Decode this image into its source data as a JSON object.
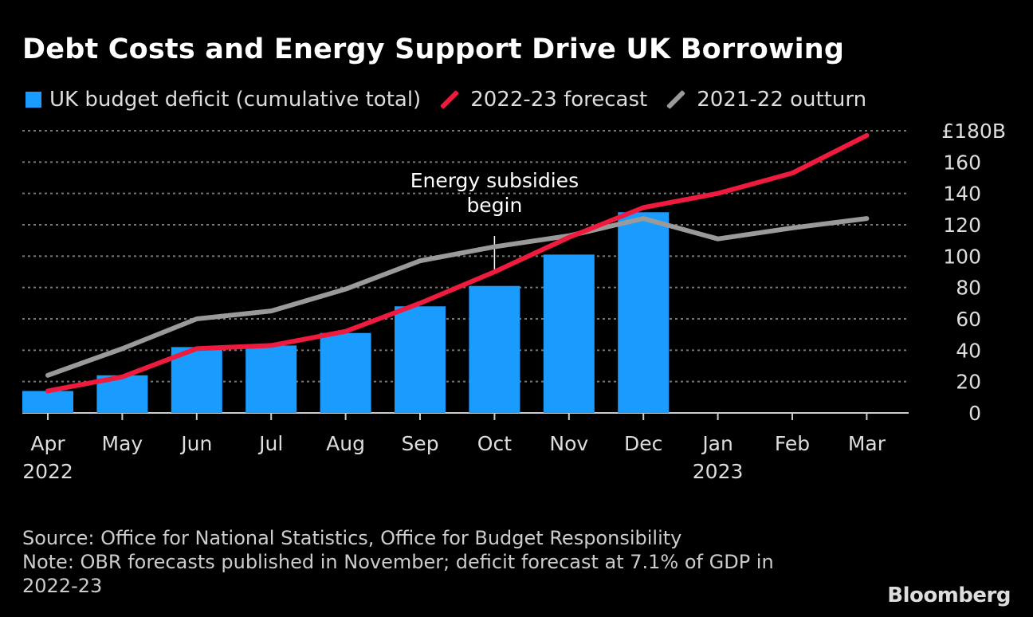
{
  "title": "Debt Costs and Energy Support Drive UK Borrowing",
  "chart_data": {
    "type": "bar",
    "title": "Debt Costs and Energy Support Drive UK Borrowing",
    "categories": [
      "Apr",
      "May",
      "Jun",
      "Jul",
      "Aug",
      "Sep",
      "Oct",
      "Nov",
      "Dec",
      "Jan",
      "Feb",
      "Mar"
    ],
    "year_labels": {
      "0": "2022",
      "9": "2023"
    },
    "series": [
      {
        "name": "UK budget deficit (cumulative total)",
        "type": "bar",
        "color": "#1a9cff",
        "values": [
          14,
          24,
          42,
          43,
          51,
          68,
          81,
          101,
          128,
          null,
          null,
          null
        ]
      },
      {
        "name": "2022-23 forecast",
        "type": "line",
        "color": "#ee1b3f",
        "values": [
          14,
          23,
          41,
          43,
          52,
          70,
          90,
          112,
          131,
          140,
          153,
          177
        ]
      },
      {
        "name": "2021-22 outturn",
        "type": "line",
        "color": "#9a9a9a",
        "values": [
          24,
          41,
          60,
          65,
          79,
          97,
          106,
          113,
          124,
          111,
          118,
          124
        ]
      }
    ],
    "ylim": [
      0,
      180
    ],
    "yticks": [
      0,
      20,
      40,
      60,
      80,
      100,
      120,
      140,
      160,
      180
    ],
    "ytick_labels": [
      "0",
      "20",
      "40",
      "60",
      "80",
      "100",
      "120",
      "140",
      "160",
      "£180B"
    ],
    "legend_position": "top-left",
    "grid": true,
    "annotation": {
      "text_line1": "Energy subsidies",
      "text_line2": "begin",
      "category": "Oct"
    }
  },
  "footer": {
    "source": "Source: Office for National Statistics, Office for Budget Responsibility",
    "note1": "Note: OBR forecasts published in November; deficit forecast at 7.1% of GDP in",
    "note2": "2022-23"
  },
  "logo": "Bloomberg"
}
